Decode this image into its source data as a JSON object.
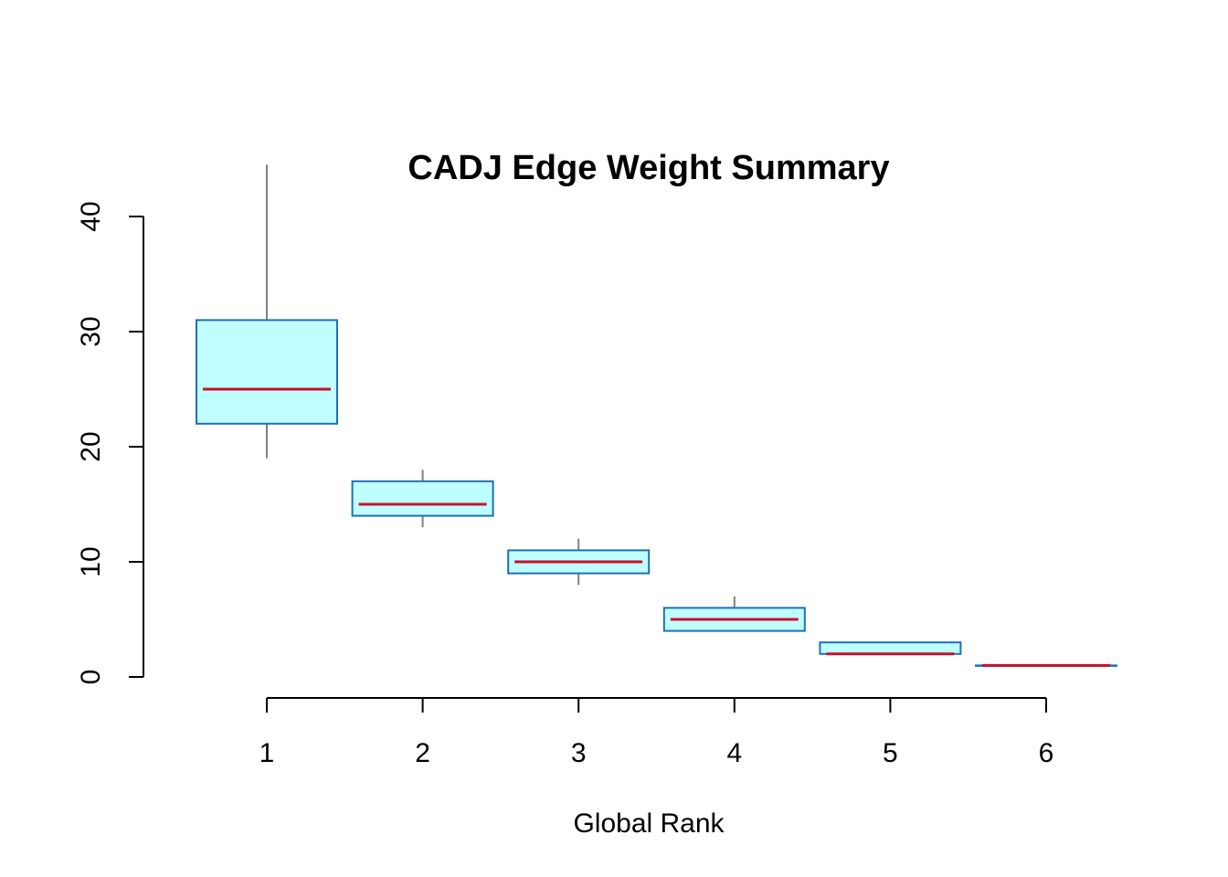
{
  "chart_data": {
    "type": "boxplot",
    "title": "CADJ Edge Weight Summary",
    "xlabel": "Global Rank",
    "ylabel": "",
    "categories": [
      "1",
      "2",
      "3",
      "4",
      "5",
      "6"
    ],
    "y_ticks": [
      "0",
      "10",
      "20",
      "30",
      "40"
    ],
    "ylim": [
      0,
      40
    ],
    "boxes": [
      {
        "category": "1",
        "min": 19,
        "q1": 22,
        "median": 25,
        "q3": 31,
        "max": 44.5
      },
      {
        "category": "2",
        "min": 13,
        "q1": 14,
        "median": 15,
        "q3": 17,
        "max": 18
      },
      {
        "category": "3",
        "min": 8,
        "q1": 9,
        "median": 10,
        "q3": 11,
        "max": 12
      },
      {
        "category": "4",
        "min": 4,
        "q1": 4,
        "median": 5,
        "q3": 6,
        "max": 7
      },
      {
        "category": "5",
        "min": 2,
        "q1": 2,
        "median": 2,
        "q3": 3,
        "max": 3
      },
      {
        "category": "6",
        "min": 1,
        "q1": 1,
        "median": 1,
        "q3": 1,
        "max": 1
      }
    ],
    "colors": {
      "box_fill": "#bfffff",
      "box_border": "#1f6fb5",
      "median": "#c8102e",
      "whisker": "#808080",
      "axis": "#000000"
    }
  }
}
